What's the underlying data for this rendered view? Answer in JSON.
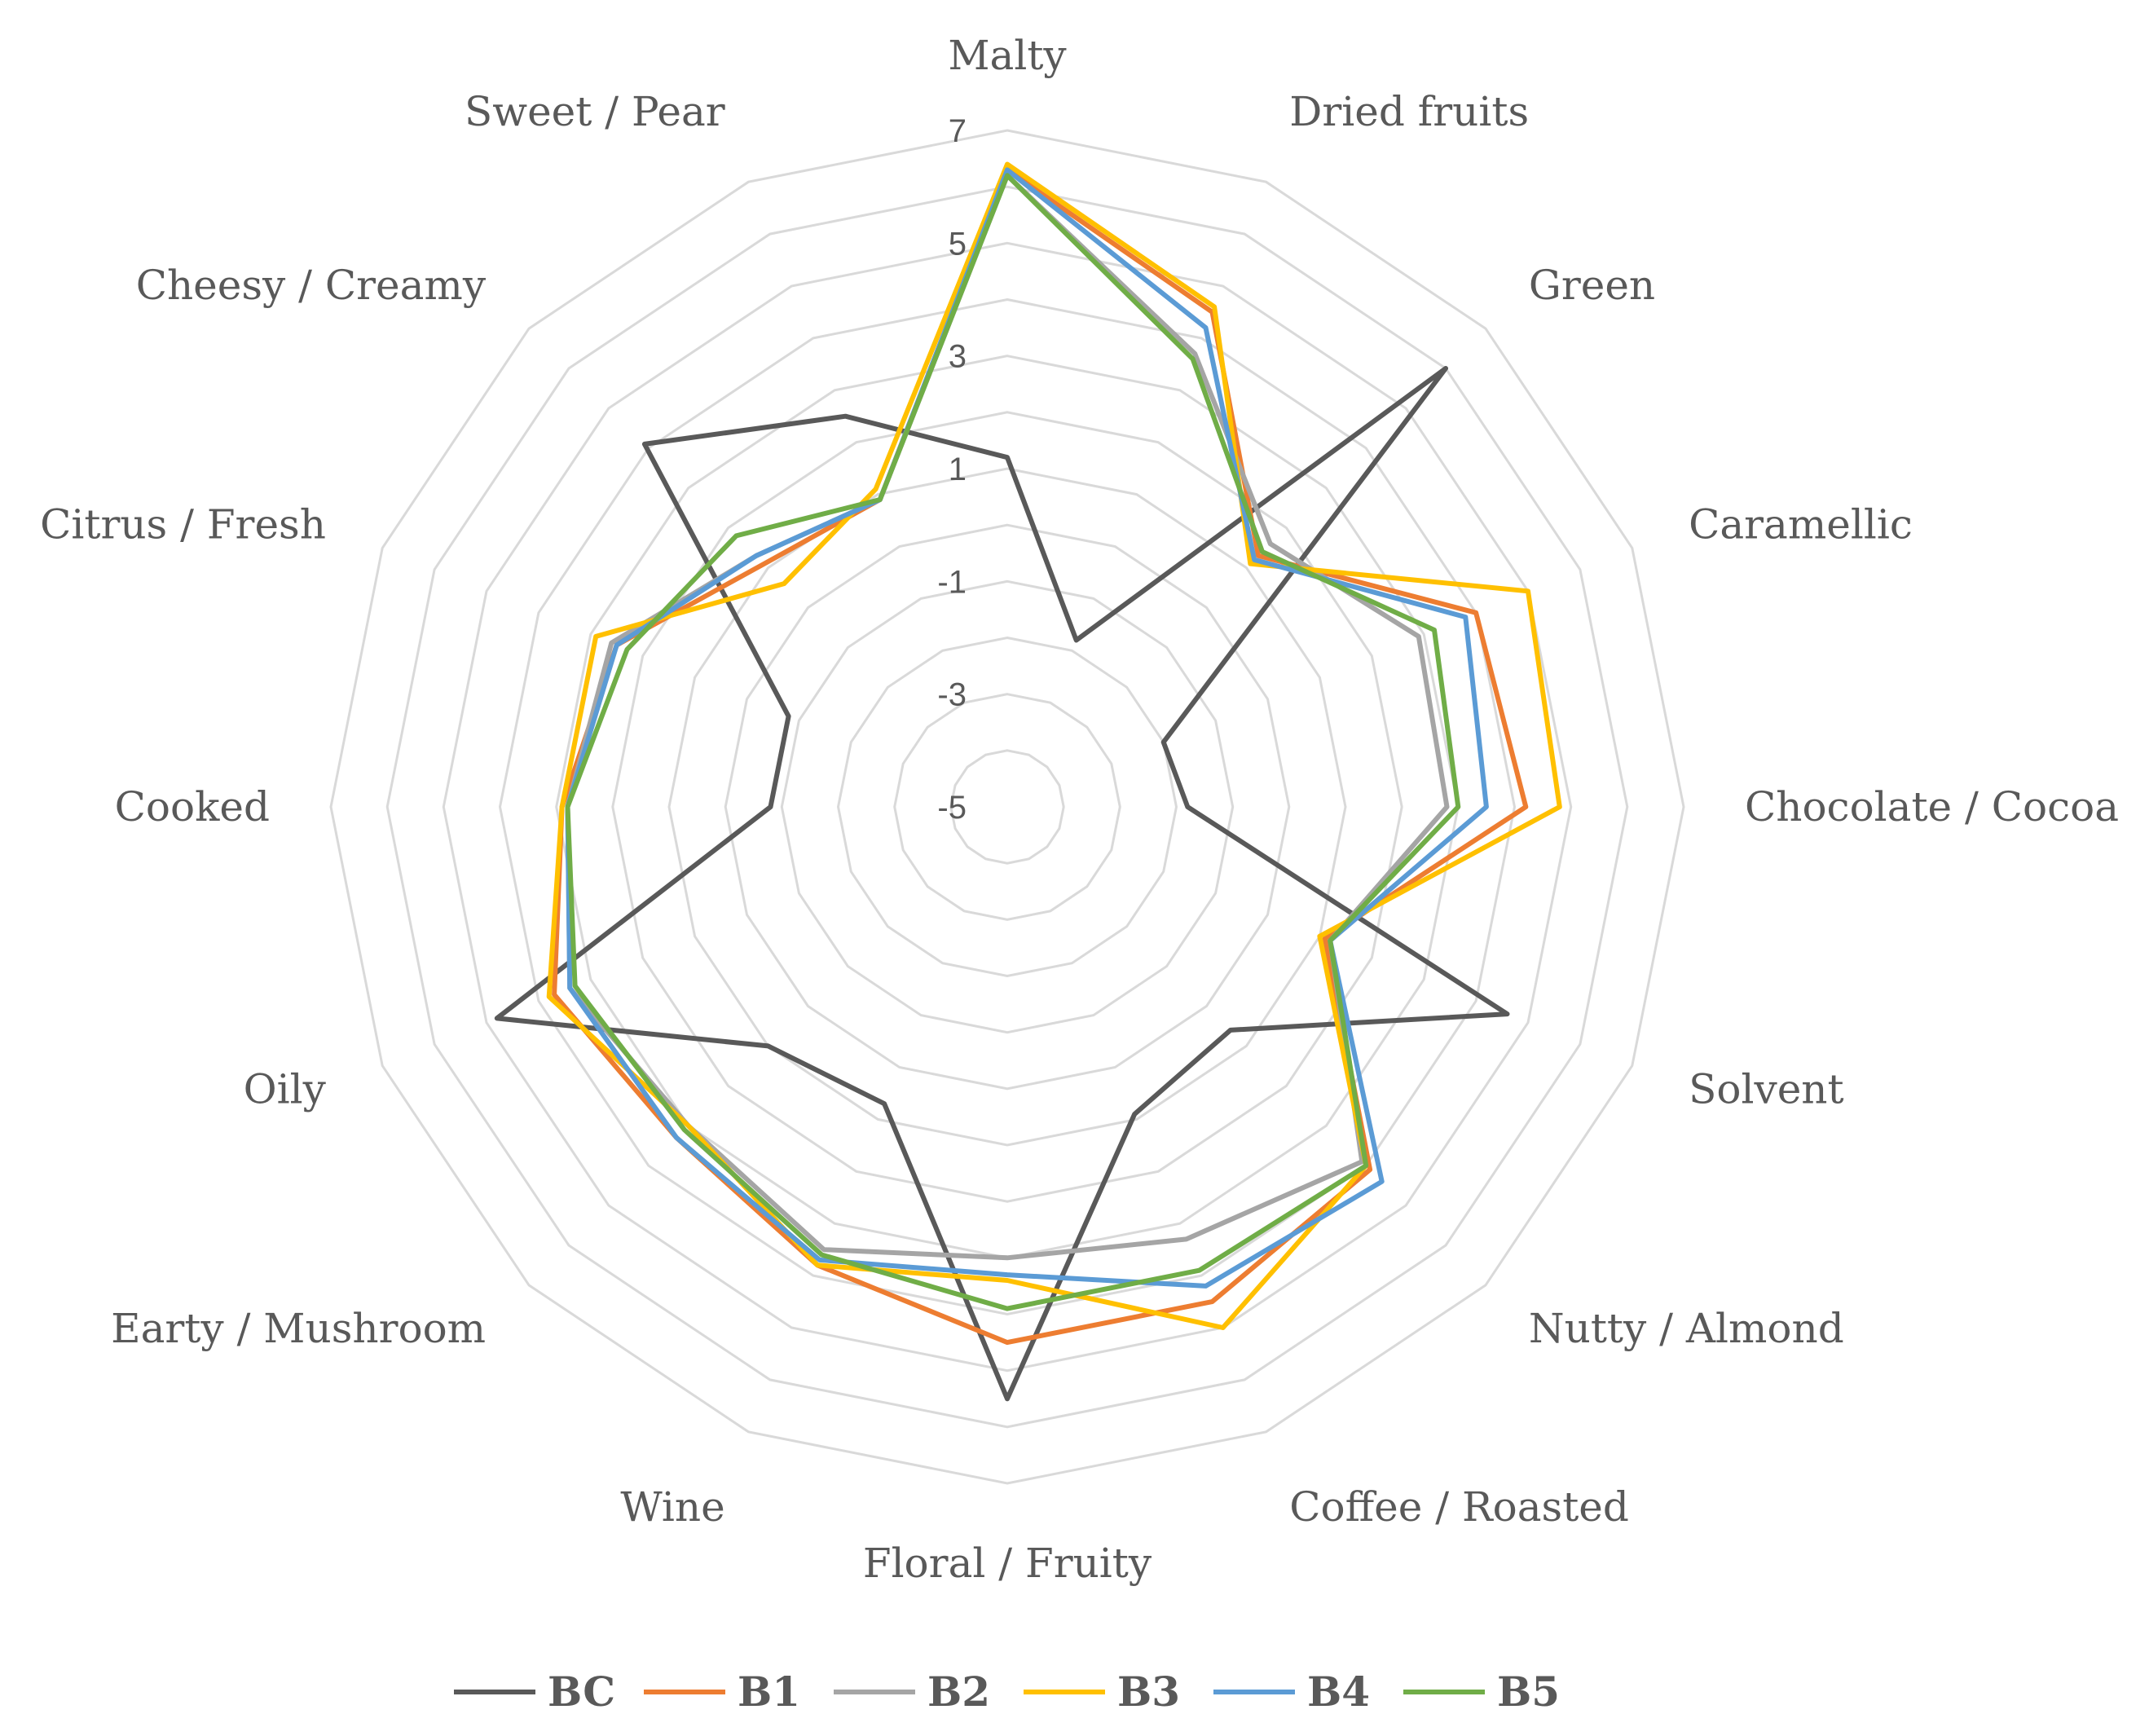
{
  "chart_data": {
    "type": "radar",
    "title": "",
    "categories": [
      "Malty",
      "Dried fruits",
      "Green",
      "Caramellic",
      "Chocolate / Cocoa",
      "Solvent",
      "Nutty / Almond",
      "Coffee / Roasted",
      "Floral / Fruity",
      "Wine",
      "Earty / Mushroom",
      "Oily",
      "Cooked",
      "Citrus / Fresh",
      "Cheesy / Creamy",
      "Sweet / Pear"
    ],
    "ticks": [
      "-5",
      "-3",
      "-1",
      "1",
      "3",
      "5",
      "7"
    ],
    "rlim": [
      -5,
      7
    ],
    "grid": true,
    "legend_position": "bottom",
    "series": [
      {
        "name": "BC",
        "color": "#595959",
        "values": [
          1.2,
          -1.8,
          6.0,
          -2.0,
          -1.8,
          4.6,
          0.6,
          0.9,
          5.5,
          0.7,
          1.0,
          4.8,
          -0.8,
          -0.8,
          4.1,
          2.5
        ]
      },
      {
        "name": "B1",
        "color": "#ed7d31",
        "values": [
          6.3,
          4.5,
          1.3,
          4.0,
          4.2,
          1.1,
          4.1,
          4.5,
          4.5,
          3.8,
          3.3,
          3.7,
          2.9,
          2.5,
          1.1,
          0.9
        ]
      },
      {
        "name": "B2",
        "color": "#a5a5a5",
        "values": [
          6.2,
          3.7,
          1.6,
          2.9,
          2.8,
          1.2,
          3.9,
          3.3,
          3.0,
          3.5,
          3.0,
          3.4,
          2.8,
          2.6,
          1.3,
          0.9
        ]
      },
      {
        "name": "B3",
        "color": "#ffc000",
        "values": [
          6.4,
          4.6,
          1.1,
          5.0,
          4.8,
          1.0,
          4.0,
          5.0,
          3.4,
          3.8,
          3.0,
          3.8,
          2.9,
          2.9,
          0.6,
          1.1
        ]
      },
      {
        "name": "B4",
        "color": "#5b9bd5",
        "values": [
          6.3,
          4.2,
          1.2,
          3.8,
          3.5,
          1.2,
          4.4,
          4.2,
          3.3,
          3.7,
          3.3,
          3.4,
          2.8,
          2.5,
          1.3,
          0.9
        ]
      },
      {
        "name": "B5",
        "color": "#70ad47",
        "values": [
          6.2,
          3.6,
          1.4,
          3.2,
          3.0,
          1.2,
          4.0,
          3.9,
          3.9,
          3.6,
          3.1,
          3.3,
          2.8,
          2.3,
          1.8,
          0.9
        ]
      }
    ]
  }
}
